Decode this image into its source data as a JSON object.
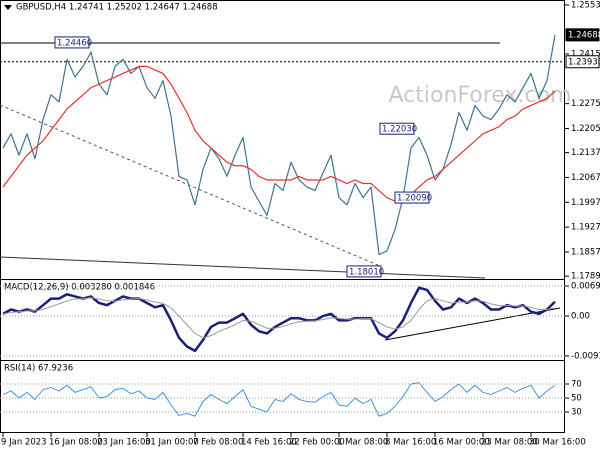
{
  "chart_data": [
    {
      "type": "line",
      "title": "GBPUSD,H4  1.24741 1.25202 1.24647 1.24688",
      "watermark": "ActionForex.com",
      "categories": [
        "9 Jan 2023",
        null,
        null,
        null,
        null,
        null,
        "16 Jan 08:00",
        null,
        null,
        null,
        null,
        null,
        "23 Jan 16:00",
        null,
        null,
        null,
        null,
        null,
        "31 Jan 00:00",
        null,
        null,
        null,
        null,
        null,
        "7 Feb 08:00",
        null,
        null,
        null,
        null,
        null,
        "14 Feb 16:00",
        null,
        null,
        null,
        null,
        null,
        "22 Feb 00:00",
        null,
        null,
        null,
        null,
        null,
        "1 Mar 08:00",
        null,
        null,
        null,
        null,
        null,
        "8 Mar 16:00",
        null,
        null,
        null,
        null,
        null,
        "16 Mar 00:00",
        null,
        null,
        null,
        null,
        null,
        "23 Mar 08:00",
        null,
        null,
        null,
        null,
        null,
        "30 Mar 16:00",
        null,
        null,
        null
      ],
      "series": [
        {
          "color": "#3f7391",
          "values": [
            1.215,
            1.219,
            1.213,
            1.219,
            1.212,
            1.223,
            1.23,
            1.228,
            1.24,
            1.235,
            1.238,
            1.242,
            1.233,
            1.23,
            1.238,
            1.24,
            1.236,
            1.238,
            1.232,
            1.229,
            1.234,
            1.224,
            1.207,
            1.206,
            1.199,
            1.209,
            1.215,
            1.212,
            1.207,
            1.213,
            1.218,
            1.204,
            1.2,
            1.196,
            1.205,
            1.203,
            1.211,
            1.206,
            1.204,
            1.203,
            1.208,
            1.213,
            1.201,
            1.199,
            1.205,
            1.201,
            1.204,
            1.185,
            1.186,
            1.192,
            1.201,
            1.215,
            1.218,
            1.213,
            1.206,
            1.209,
            1.216,
            1.225,
            1.22,
            1.227,
            1.224,
            1.223,
            1.226,
            1.23,
            1.228,
            1.232,
            1.236,
            1.229,
            1.234,
            1.24688
          ]
        },
        {
          "color": "#e8312f",
          "values": [
            1.204,
            1.207,
            1.21,
            1.213,
            1.215,
            1.217,
            1.22,
            1.223,
            1.226,
            1.228,
            1.23,
            1.232,
            1.233,
            1.234,
            1.235,
            1.236,
            1.237,
            1.238,
            1.238,
            1.237,
            1.236,
            1.233,
            1.229,
            1.225,
            1.22,
            1.217,
            1.215,
            1.213,
            1.211,
            1.21,
            1.21,
            1.209,
            1.207,
            1.206,
            1.206,
            1.206,
            1.206,
            1.207,
            1.206,
            1.206,
            1.206,
            1.207,
            1.206,
            1.205,
            1.206,
            1.205,
            1.205,
            1.203,
            1.201,
            1.2,
            1.2,
            1.202,
            1.204,
            1.206,
            1.207,
            1.209,
            1.211,
            1.213,
            1.215,
            1.217,
            1.219,
            1.22,
            1.221,
            1.223,
            1.224,
            1.226,
            1.227,
            1.228,
            1.229,
            1.231
          ]
        }
      ],
      "ylim": [
        1.1781,
        1.2567
      ],
      "yticks": [
        {
          "value": 1.2553,
          "label": "1.25530"
        },
        {
          "value": 1.2415,
          "label": "1.24150"
        },
        {
          "value": 1.2275,
          "label": "1.22750"
        },
        {
          "value": 1.2205,
          "label": "1.22050"
        },
        {
          "value": 1.2137,
          "label": "1.21370"
        },
        {
          "value": 1.2067,
          "label": "1.20670"
        },
        {
          "value": 1.1997,
          "label": "1.19970"
        },
        {
          "value": 1.1927,
          "label": "1.19270"
        },
        {
          "value": 1.1857,
          "label": "1.18570"
        },
        {
          "value": 1.1789,
          "label": "1.17890"
        }
      ],
      "price_labels": [
        {
          "value": 1.24688,
          "label": "1.24688",
          "style": "filled"
        },
        {
          "value": 1.2393,
          "label": "1.23930",
          "style": "boxed"
        }
      ],
      "levels": [
        {
          "value": 1.2446,
          "style": "solid"
        },
        {
          "value": 1.2393,
          "style": "dashed"
        }
      ],
      "annotations": [
        {
          "value": 1.2446,
          "label": "1.24460"
        },
        {
          "value": 1.2203,
          "label": "1.22030"
        },
        {
          "value": 1.2009,
          "label": "1.20090"
        },
        {
          "value": 1.1801,
          "label": "1.18010"
        }
      ]
    },
    {
      "type": "line",
      "title": "MACD(12,26,9) 0.003280 0.001846",
      "series": [
        {
          "color": "#1b1f7a",
          "values": [
            0.0005,
            0.0015,
            0.001,
            0.0015,
            0.001,
            0.0025,
            0.004,
            0.004,
            0.005,
            0.0045,
            0.004,
            0.0045,
            0.003,
            0.0025,
            0.0035,
            0.0045,
            0.004,
            0.004,
            0.003,
            0.002,
            0.0025,
            -0.001,
            -0.005,
            -0.007,
            -0.008,
            -0.0055,
            -0.0025,
            -0.0015,
            -0.0015,
            -0.0005,
            0.0005,
            -0.002,
            -0.0035,
            -0.004,
            -0.0025,
            -0.0015,
            -0.0005,
            -0.0005,
            -0.001,
            -0.001,
            0.0,
            0.0005,
            -0.001,
            -0.001,
            -0.0005,
            -0.0005,
            -0.0005,
            -0.004,
            -0.005,
            -0.0035,
            -0.001,
            0.003,
            0.0065,
            0.006,
            0.0035,
            0.0015,
            0.002,
            0.004,
            0.003,
            0.004,
            0.003,
            0.0015,
            0.0015,
            0.0025,
            0.002,
            0.0025,
            0.001,
            0.0005,
            0.0015,
            0.00328
          ]
        },
        {
          "color": "#9a9a9a",
          "values": [
            0.0005,
            0.0008,
            0.001,
            0.0012,
            0.0012,
            0.0015,
            0.0022,
            0.0028,
            0.0035,
            0.0039,
            0.004,
            0.0042,
            0.0039,
            0.0035,
            0.0034,
            0.0037,
            0.0039,
            0.004,
            0.0037,
            0.0032,
            0.0029,
            0.0019,
            0.0,
            -0.002,
            -0.004,
            -0.005,
            -0.0045,
            -0.0035,
            -0.0028,
            -0.002,
            -0.001,
            -0.0012,
            -0.002,
            -0.0028,
            -0.0028,
            -0.0024,
            -0.0018,
            -0.0013,
            -0.0012,
            -0.0011,
            -0.0008,
            -0.0004,
            -0.0005,
            -0.0007,
            -0.0007,
            -0.0006,
            -0.0006,
            -0.0015,
            -0.0025,
            -0.003,
            -0.0025,
            -0.001,
            0.0015,
            0.0035,
            0.004,
            0.0035,
            0.003,
            0.0032,
            0.0032,
            0.0035,
            0.0034,
            0.0028,
            0.0024,
            0.0024,
            0.0023,
            0.0023,
            0.002,
            0.0015,
            0.0015,
            0.001846
          ]
        }
      ],
      "ylim": [
        -0.0101,
        0.00828
      ],
      "yticks": [
        0.0069,
        {
          "value": 0,
          "label": "0.00"
        },
        -0.009158
      ]
    },
    {
      "type": "line",
      "title": "RSI(14) 67.9236",
      "series": [
        {
          "color": "#2f8ae6",
          "values": [
            55,
            60,
            50,
            58,
            48,
            62,
            65,
            60,
            68,
            58,
            62,
            66,
            50,
            52,
            62,
            64,
            56,
            60,
            50,
            48,
            58,
            40,
            25,
            28,
            24,
            45,
            55,
            48,
            42,
            52,
            62,
            38,
            34,
            30,
            48,
            45,
            56,
            48,
            45,
            44,
            52,
            58,
            40,
            38,
            50,
            42,
            48,
            24,
            28,
            38,
            52,
            70,
            72,
            58,
            45,
            52,
            62,
            70,
            58,
            68,
            58,
            55,
            60,
            65,
            58,
            64,
            68,
            50,
            60,
            67.9236
          ]
        }
      ],
      "ylim": [
        0,
        100
      ],
      "yticks": [
        70,
        50,
        30
      ]
    }
  ]
}
